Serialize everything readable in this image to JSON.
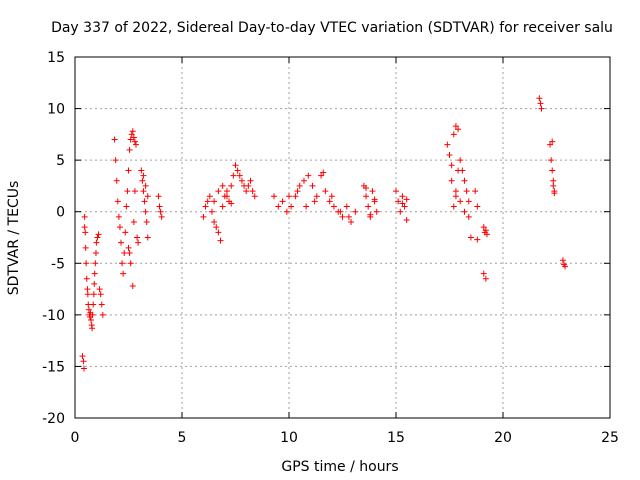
{
  "chart_data": {
    "type": "scatter",
    "title": "Day 337 of 2022, Sidereal Day-to-day VTEC variation (SDTVAR) for receiver salu",
    "xlabel": "GPS time / hours",
    "ylabel": "SDTVAR / TECUs",
    "xlim": [
      0,
      25
    ],
    "ylim": [
      -20,
      15
    ],
    "xticks": [
      0,
      5,
      10,
      15,
      20,
      25
    ],
    "yticks": [
      15,
      10,
      5,
      0,
      -5,
      -10,
      -15,
      -20
    ],
    "xtick_labels": [
      "0",
      "5",
      "10",
      "15",
      "20",
      "25"
    ],
    "ytick_labels": [
      "15",
      "10",
      "5",
      "0",
      "-5",
      "-10",
      "-15",
      "-20"
    ],
    "grid": true,
    "marker": "+",
    "color": "#ff0000",
    "series": [
      {
        "name": "SDTVAR",
        "x": [
          0.35,
          0.4,
          0.42,
          0.45,
          0.45,
          0.48,
          0.5,
          0.52,
          0.55,
          0.58,
          0.6,
          0.62,
          0.65,
          0.68,
          0.7,
          0.72,
          0.75,
          0.78,
          0.8,
          0.82,
          0.85,
          0.88,
          0.9,
          0.92,
          0.95,
          0.98,
          1.0,
          1.05,
          1.1,
          1.15,
          1.2,
          1.25,
          1.3,
          1.85,
          1.9,
          1.95,
          2.0,
          2.05,
          2.1,
          2.15,
          2.2,
          2.25,
          2.3,
          2.35,
          2.4,
          2.45,
          2.5,
          2.55,
          2.6,
          2.65,
          2.7,
          2.75,
          2.8,
          2.85,
          2.9,
          2.95,
          2.5,
          2.55,
          2.6,
          2.7,
          2.75,
          2.8,
          3.1,
          3.15,
          3.2,
          3.25,
          3.3,
          3.35,
          3.4,
          3.2,
          3.3,
          3.4,
          3.9,
          3.95,
          4.0,
          4.05,
          6.0,
          6.1,
          6.2,
          6.3,
          6.4,
          6.5,
          6.6,
          6.7,
          6.8,
          6.9,
          7.0,
          7.1,
          7.2,
          7.3,
          7.4,
          7.5,
          7.6,
          7.7,
          7.8,
          7.9,
          8.0,
          8.1,
          8.2,
          8.3,
          8.4,
          6.5,
          6.7,
          6.9,
          7.1,
          7.3,
          9.3,
          9.5,
          9.7,
          9.9,
          10.1,
          10.3,
          10.5,
          10.7,
          10.9,
          11.1,
          11.3,
          11.5,
          11.7,
          11.9,
          12.1,
          12.3,
          12.5,
          12.7,
          12.9,
          13.1,
          10.0,
          10.4,
          10.8,
          11.2,
          11.6,
          12.0,
          12.4,
          12.8,
          13.5,
          13.6,
          13.7,
          13.8,
          13.9,
          14.0,
          14.1,
          13.6,
          13.8,
          14.0,
          15.0,
          15.1,
          15.2,
          15.3,
          15.4,
          15.5,
          15.3,
          15.5,
          17.4,
          17.5,
          17.6,
          17.7,
          17.8,
          17.9,
          18.0,
          18.1,
          18.2,
          18.3,
          18.4,
          17.6,
          17.8,
          18.0,
          18.2,
          18.4,
          17.7,
          17.8,
          17.9,
          18.5,
          18.7,
          18.8,
          18.8,
          19.1,
          19.15,
          19.2,
          19.25,
          19.1,
          19.2,
          21.7,
          21.75,
          21.8,
          22.2,
          22.25,
          22.3,
          22.35,
          22.4,
          22.3,
          22.35,
          22.4,
          22.8,
          22.85,
          22.9
        ],
        "y": [
          -14.0,
          -14.5,
          -15.2,
          -1.5,
          -0.5,
          -2.0,
          -3.5,
          -5.0,
          -6.5,
          -7.5,
          -8.0,
          -9.0,
          -9.5,
          -10.0,
          -10.2,
          -9.8,
          -10.5,
          -11.0,
          -11.3,
          -10.0,
          -9.0,
          -8.0,
          -7.0,
          -6.0,
          -5.0,
          -4.0,
          -3.0,
          -2.5,
          -2.2,
          -7.5,
          -8.0,
          -9.0,
          -10.0,
          7.0,
          5.0,
          3.0,
          1.0,
          -0.5,
          -1.5,
          -3.0,
          -5.0,
          -6.0,
          -4.0,
          -2.0,
          0.5,
          2.0,
          4.0,
          6.0,
          7.0,
          7.5,
          7.8,
          7.2,
          6.8,
          6.5,
          -2.5,
          -3.0,
          -3.5,
          -4.0,
          -5.0,
          -7.2,
          -1.0,
          2.0,
          4.0,
          3.0,
          2.0,
          1.0,
          0.0,
          -1.0,
          -2.5,
          3.5,
          2.5,
          1.5,
          1.5,
          0.5,
          0.0,
          -0.5,
          -0.5,
          0.5,
          1.0,
          1.5,
          0.0,
          -1.0,
          -1.5,
          -2.0,
          -2.8,
          0.5,
          1.5,
          2.0,
          1.0,
          2.5,
          3.5,
          4.5,
          4.0,
          3.5,
          3.0,
          2.5,
          2.0,
          2.5,
          3.0,
          2.0,
          1.5,
          1.0,
          2.0,
          2.5,
          1.5,
          0.8,
          1.5,
          0.5,
          1.0,
          0.0,
          0.5,
          1.5,
          2.5,
          3.0,
          3.5,
          2.5,
          1.5,
          3.5,
          2.0,
          1.0,
          0.5,
          0.0,
          -0.5,
          0.5,
          -1.0,
          0.0,
          1.5,
          2.0,
          0.5,
          1.0,
          3.8,
          1.5,
          0.0,
          -0.5,
          2.5,
          1.5,
          0.5,
          -0.5,
          2.0,
          1.0,
          0.0,
          2.3,
          -0.3,
          1.2,
          2.0,
          1.0,
          0.0,
          1.5,
          0.5,
          -0.8,
          0.8,
          1.2,
          6.5,
          5.5,
          4.5,
          7.5,
          8.3,
          8.0,
          5.0,
          4.0,
          3.0,
          2.0,
          1.0,
          3.0,
          2.0,
          1.0,
          0.0,
          -0.5,
          0.5,
          1.5,
          4.0,
          -2.5,
          2.0,
          0.5,
          -2.7,
          -1.5,
          -2.0,
          -1.8,
          -2.2,
          -6.0,
          -6.5,
          11.0,
          10.5,
          10.0,
          6.5,
          5.0,
          4.0,
          3.0,
          2.0,
          6.8,
          2.5,
          1.8,
          -4.7,
          -5.1,
          -5.3
        ]
      }
    ]
  }
}
